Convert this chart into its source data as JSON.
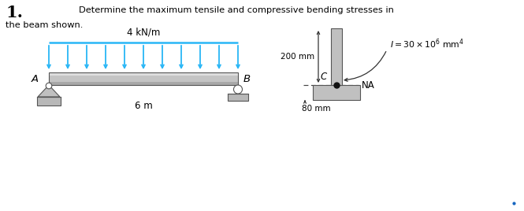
{
  "title_number": "1.",
  "problem_text_line1": "Determine the maximum tensile and compressive bending stresses in",
  "problem_text_line2": "the beam shown.",
  "load_label": "4 kN/m",
  "length_label": "6 m",
  "point_A": "A",
  "point_B": "B",
  "point_C": "C",
  "na_label": "NA",
  "dim1_label": "200 mm",
  "dim2_label": "80 mm",
  "moment_label": "I = 30 \\times 10^6\\ \\mathrm{mm}^4",
  "beam_color_top": "#d0d0d0",
  "beam_color_mid": "#b8b8b8",
  "beam_color_bot": "#999999",
  "load_arrow_color": "#29b6f6",
  "support_color": "#b0b0b0",
  "section_color": "#c0c0c0",
  "bg_color": "#ffffff",
  "text_color": "#000000",
  "n_load_arrows": 11
}
